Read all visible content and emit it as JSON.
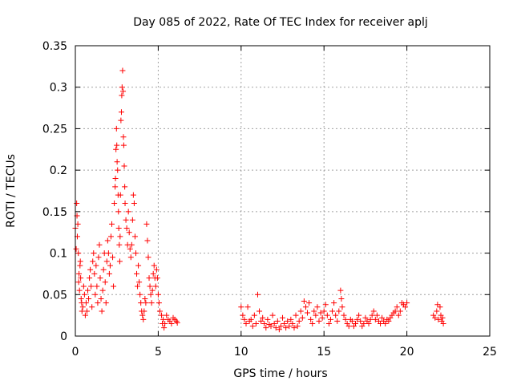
{
  "chart_data": {
    "type": "scatter",
    "title": "Day 085 of 2022, Rate Of TEC Index for receiver aplj",
    "xlabel": "GPS time / hours",
    "ylabel": "ROTI / TECUs",
    "xlim": [
      0,
      25
    ],
    "ylim": [
      0,
      0.35
    ],
    "xticks": [
      "0",
      "5",
      "10",
      "15",
      "20",
      "25"
    ],
    "yticks": [
      "0",
      "0.05",
      "0.1",
      "0.15",
      "0.2",
      "0.25",
      "0.3",
      "0.35"
    ],
    "grid": true,
    "marker": "+",
    "color": "#ff0000",
    "series": [
      {
        "points": [
          [
            0.0,
            0.13
          ],
          [
            0.05,
            0.105
          ],
          [
            0.08,
            0.16
          ],
          [
            0.1,
            0.145
          ],
          [
            0.12,
            0.12
          ],
          [
            0.15,
            0.135
          ],
          [
            0.18,
            0.1
          ],
          [
            0.2,
            0.065
          ],
          [
            0.22,
            0.075
          ],
          [
            0.25,
            0.055
          ],
          [
            0.28,
            0.085
          ],
          [
            0.3,
            0.09
          ],
          [
            0.32,
            0.07
          ],
          [
            0.35,
            0.045
          ],
          [
            0.38,
            0.04
          ],
          [
            0.4,
            0.03
          ],
          [
            0.45,
            0.035
          ],
          [
            0.5,
            0.06
          ],
          [
            0.55,
            0.05
          ],
          [
            0.6,
            0.025
          ],
          [
            0.65,
            0.04
          ],
          [
            0.7,
            0.03
          ],
          [
            0.75,
            0.055
          ],
          [
            0.8,
            0.045
          ],
          [
            0.85,
            0.07
          ],
          [
            0.9,
            0.08
          ],
          [
            0.95,
            0.06
          ],
          [
            1.0,
            0.035
          ],
          [
            1.05,
            0.09
          ],
          [
            1.1,
            0.1
          ],
          [
            1.15,
            0.075
          ],
          [
            1.2,
            0.05
          ],
          [
            1.25,
            0.085
          ],
          [
            1.3,
            0.06
          ],
          [
            1.35,
            0.04
          ],
          [
            1.4,
            0.095
          ],
          [
            1.45,
            0.11
          ],
          [
            1.5,
            0.07
          ],
          [
            1.55,
            0.045
          ],
          [
            1.6,
            0.03
          ],
          [
            1.65,
            0.055
          ],
          [
            1.7,
            0.08
          ],
          [
            1.75,
            0.1
          ],
          [
            1.8,
            0.065
          ],
          [
            1.85,
            0.04
          ],
          [
            1.9,
            0.09
          ],
          [
            1.95,
            0.115
          ],
          [
            2.0,
            0.1
          ],
          [
            2.05,
            0.075
          ],
          [
            2.1,
            0.085
          ],
          [
            2.15,
            0.12
          ],
          [
            2.2,
            0.135
          ],
          [
            2.25,
            0.095
          ],
          [
            2.3,
            0.06
          ],
          [
            2.35,
            0.16
          ],
          [
            2.4,
            0.18
          ],
          [
            2.42,
            0.19
          ],
          [
            2.45,
            0.225
          ],
          [
            2.48,
            0.25
          ],
          [
            2.5,
            0.23
          ],
          [
            2.52,
            0.21
          ],
          [
            2.55,
            0.2
          ],
          [
            2.58,
            0.17
          ],
          [
            2.6,
            0.15
          ],
          [
            2.62,
            0.13
          ],
          [
            2.65,
            0.11
          ],
          [
            2.68,
            0.09
          ],
          [
            2.7,
            0.12
          ],
          [
            2.72,
            0.17
          ],
          [
            2.75,
            0.26
          ],
          [
            2.78,
            0.27
          ],
          [
            2.8,
            0.29
          ],
          [
            2.82,
            0.3
          ],
          [
            2.85,
            0.32
          ],
          [
            2.88,
            0.295
          ],
          [
            2.9,
            0.24
          ],
          [
            2.92,
            0.23
          ],
          [
            2.95,
            0.205
          ],
          [
            2.98,
            0.18
          ],
          [
            3.0,
            0.16
          ],
          [
            3.05,
            0.14
          ],
          [
            3.1,
            0.13
          ],
          [
            3.15,
            0.11
          ],
          [
            3.2,
            0.15
          ],
          [
            3.25,
            0.125
          ],
          [
            3.3,
            0.105
          ],
          [
            3.35,
            0.095
          ],
          [
            3.4,
            0.11
          ],
          [
            3.45,
            0.14
          ],
          [
            3.5,
            0.17
          ],
          [
            3.55,
            0.16
          ],
          [
            3.6,
            0.12
          ],
          [
            3.65,
            0.1
          ],
          [
            3.7,
            0.075
          ],
          [
            3.75,
            0.06
          ],
          [
            3.8,
            0.085
          ],
          [
            3.85,
            0.065
          ],
          [
            3.9,
            0.05
          ],
          [
            3.95,
            0.04
          ],
          [
            4.0,
            0.03
          ],
          [
            4.05,
            0.025
          ],
          [
            4.1,
            0.02
          ],
          [
            4.15,
            0.03
          ],
          [
            4.2,
            0.045
          ],
          [
            4.25,
            0.04
          ],
          [
            4.3,
            0.135
          ],
          [
            4.35,
            0.115
          ],
          [
            4.4,
            0.095
          ],
          [
            4.45,
            0.07
          ],
          [
            4.5,
            0.06
          ],
          [
            4.55,
            0.05
          ],
          [
            4.6,
            0.04
          ],
          [
            4.65,
            0.055
          ],
          [
            4.7,
            0.075
          ],
          [
            4.75,
            0.085
          ],
          [
            4.8,
            0.07
          ],
          [
            4.85,
            0.06
          ],
          [
            4.9,
            0.08
          ],
          [
            4.95,
            0.07
          ],
          [
            5.0,
            0.05
          ],
          [
            5.05,
            0.04
          ],
          [
            5.1,
            0.03
          ],
          [
            5.2,
            0.025
          ],
          [
            5.25,
            0.015
          ],
          [
            5.3,
            0.02
          ],
          [
            5.35,
            0.01
          ],
          [
            5.4,
            0.015
          ],
          [
            5.5,
            0.025
          ],
          [
            5.6,
            0.02
          ],
          [
            5.7,
            0.018
          ],
          [
            5.8,
            0.015
          ],
          [
            5.9,
            0.022
          ],
          [
            6.0,
            0.02
          ],
          [
            6.1,
            0.018
          ],
          [
            6.15,
            0.016
          ],
          [
            10.0,
            0.035
          ],
          [
            10.1,
            0.025
          ],
          [
            10.2,
            0.02
          ],
          [
            10.3,
            0.015
          ],
          [
            10.4,
            0.035
          ],
          [
            10.5,
            0.018
          ],
          [
            10.6,
            0.02
          ],
          [
            10.7,
            0.012
          ],
          [
            10.8,
            0.025
          ],
          [
            10.9,
            0.015
          ],
          [
            11.0,
            0.05
          ],
          [
            11.1,
            0.03
          ],
          [
            11.2,
            0.018
          ],
          [
            11.3,
            0.022
          ],
          [
            11.4,
            0.015
          ],
          [
            11.5,
            0.01
          ],
          [
            11.6,
            0.02
          ],
          [
            11.7,
            0.014
          ],
          [
            11.8,
            0.012
          ],
          [
            11.9,
            0.025
          ],
          [
            12.0,
            0.015
          ],
          [
            12.1,
            0.01
          ],
          [
            12.2,
            0.018
          ],
          [
            12.3,
            0.008
          ],
          [
            12.4,
            0.012
          ],
          [
            12.5,
            0.022
          ],
          [
            12.6,
            0.015
          ],
          [
            12.7,
            0.01
          ],
          [
            12.8,
            0.018
          ],
          [
            12.9,
            0.012
          ],
          [
            13.0,
            0.02
          ],
          [
            13.1,
            0.015
          ],
          [
            13.2,
            0.01
          ],
          [
            13.3,
            0.025
          ],
          [
            13.4,
            0.012
          ],
          [
            13.5,
            0.018
          ],
          [
            13.6,
            0.03
          ],
          [
            13.7,
            0.022
          ],
          [
            13.8,
            0.042
          ],
          [
            13.9,
            0.035
          ],
          [
            14.0,
            0.028
          ],
          [
            14.1,
            0.04
          ],
          [
            14.2,
            0.02
          ],
          [
            14.3,
            0.015
          ],
          [
            14.4,
            0.03
          ],
          [
            14.5,
            0.025
          ],
          [
            14.6,
            0.035
          ],
          [
            14.7,
            0.018
          ],
          [
            14.8,
            0.028
          ],
          [
            14.9,
            0.022
          ],
          [
            15.0,
            0.03
          ],
          [
            15.1,
            0.038
          ],
          [
            15.2,
            0.025
          ],
          [
            15.3,
            0.015
          ],
          [
            15.4,
            0.02
          ],
          [
            15.5,
            0.03
          ],
          [
            15.6,
            0.04
          ],
          [
            15.7,
            0.025
          ],
          [
            15.8,
            0.018
          ],
          [
            15.9,
            0.03
          ],
          [
            16.0,
            0.055
          ],
          [
            16.05,
            0.045
          ],
          [
            16.1,
            0.035
          ],
          [
            16.2,
            0.025
          ],
          [
            16.3,
            0.02
          ],
          [
            16.4,
            0.015
          ],
          [
            16.5,
            0.012
          ],
          [
            16.6,
            0.02
          ],
          [
            16.7,
            0.018
          ],
          [
            16.8,
            0.012
          ],
          [
            16.9,
            0.015
          ],
          [
            17.0,
            0.02
          ],
          [
            17.1,
            0.025
          ],
          [
            17.2,
            0.018
          ],
          [
            17.3,
            0.012
          ],
          [
            17.4,
            0.015
          ],
          [
            17.5,
            0.022
          ],
          [
            17.6,
            0.018
          ],
          [
            17.7,
            0.015
          ],
          [
            17.8,
            0.02
          ],
          [
            17.9,
            0.025
          ],
          [
            18.0,
            0.03
          ],
          [
            18.1,
            0.02
          ],
          [
            18.2,
            0.025
          ],
          [
            18.3,
            0.018
          ],
          [
            18.4,
            0.015
          ],
          [
            18.5,
            0.022
          ],
          [
            18.6,
            0.018
          ],
          [
            18.7,
            0.015
          ],
          [
            18.8,
            0.02
          ],
          [
            18.9,
            0.018
          ],
          [
            19.0,
            0.022
          ],
          [
            19.1,
            0.025
          ],
          [
            19.2,
            0.028
          ],
          [
            19.3,
            0.03
          ],
          [
            19.4,
            0.035
          ],
          [
            19.5,
            0.025
          ],
          [
            19.6,
            0.03
          ],
          [
            19.7,
            0.04
          ],
          [
            19.8,
            0.038
          ],
          [
            19.9,
            0.035
          ],
          [
            20.0,
            0.04
          ],
          [
            21.6,
            0.025
          ],
          [
            21.7,
            0.022
          ],
          [
            21.8,
            0.03
          ],
          [
            21.85,
            0.038
          ],
          [
            21.9,
            0.02
          ],
          [
            22.0,
            0.035
          ],
          [
            22.05,
            0.025
          ],
          [
            22.1,
            0.018
          ],
          [
            22.15,
            0.022
          ],
          [
            22.2,
            0.015
          ]
        ]
      }
    ]
  }
}
